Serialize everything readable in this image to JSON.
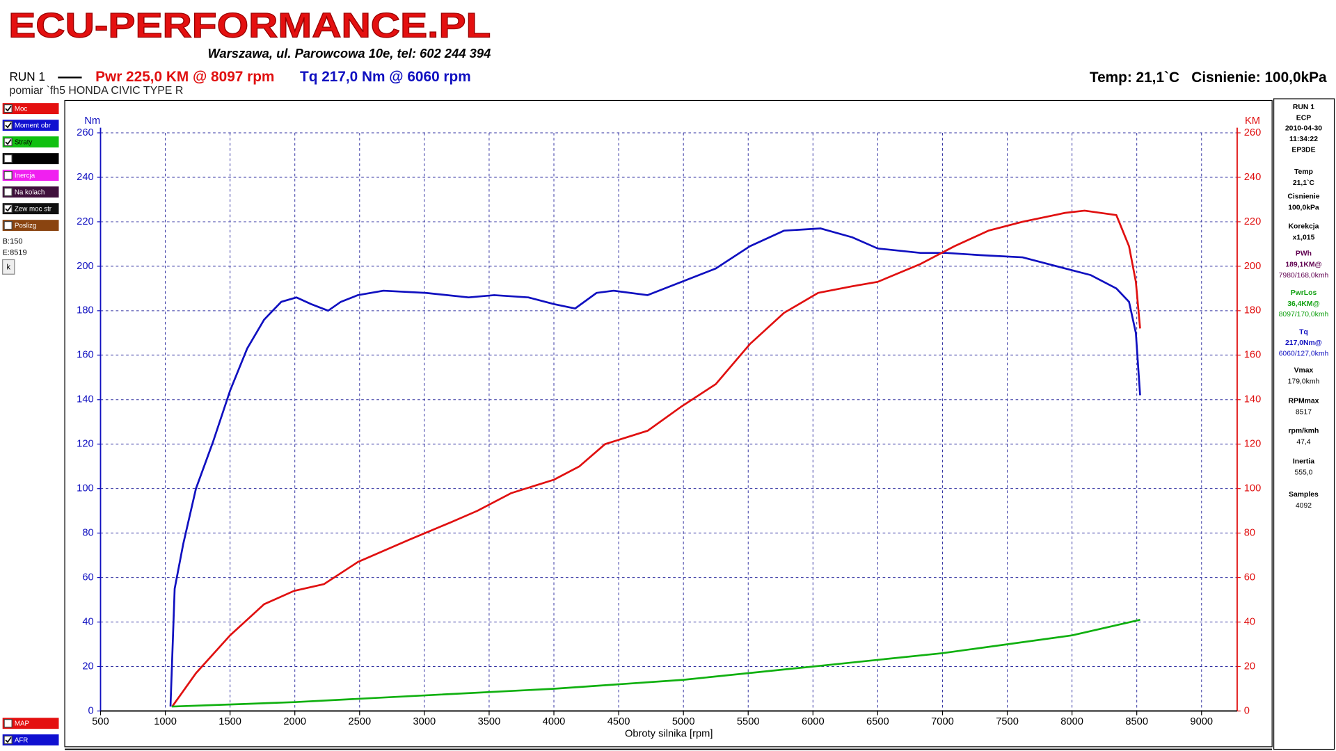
{
  "header": {
    "title": "ECU-PERFORMANCE.PL",
    "address": "Warszawa, ul. Parowcowa 10e, tel: 602 244 394",
    "run": "RUN 1",
    "pwr": "Pwr  225,0 KM @ 8097 rpm",
    "tq": "Tq 217,0 Nm @ 6060 rpm",
    "measurement": "pomiar `fh5 HONDA CIVIC TYPE R",
    "conditions": "Temp: 21,1`C   Cisnienie: 100,0kPa"
  },
  "sidebar": {
    "items": [
      {
        "label": "Moc",
        "color": "#e41010",
        "checked": true
      },
      {
        "label": "Moment obr",
        "color": "#1010d0",
        "checked": true
      },
      {
        "label": "Straty",
        "color": "#10c010",
        "checked": true
      },
      {
        "color": "#000000",
        "checked": false
      },
      {
        "label": "Inercja",
        "color": "#f020f0",
        "checked": false
      },
      {
        "label": "Na kolach",
        "color": "#40103c",
        "checked": false
      },
      {
        "label": "Zew moc str",
        "color": "#101010",
        "checked": true
      },
      {
        "label": "Poslizg",
        "color": "#8a4410",
        "checked": false
      }
    ],
    "b": "B:150",
    "e": "E:8519",
    "button": "k",
    "bottom_items": [
      {
        "label": "MAP",
        "color": "#e41010",
        "checked": false
      },
      {
        "label": "AFR",
        "color": "#1010d0",
        "checked": true
      }
    ]
  },
  "info_panel": {
    "header": [
      "RUN 1",
      "ECP",
      "2010-04-30",
      "11:34:22",
      "EP3DE"
    ],
    "fields": [
      {
        "label": "Temp",
        "lines": [
          "21,1`C"
        ]
      },
      {
        "label": "Cisnienie",
        "lines": [
          "100,0kPa"
        ]
      },
      {
        "label": "Korekcja",
        "lines": [
          "x1,015"
        ]
      },
      {
        "label": "PWh",
        "color": "#600050",
        "lines": [
          "189,1KM@",
          "7980/168,0kmh"
        ]
      },
      {
        "label": "PwrLos",
        "color": "#10a010",
        "lines": [
          "36,4KM@",
          "8097/170,0kmh"
        ]
      },
      {
        "label": "Tq",
        "color": "#1010c0",
        "lines": [
          "217,0Nm@",
          "6060/127,0kmh"
        ]
      },
      {
        "label": "Vmax",
        "lines": [
          "179,0kmh"
        ]
      },
      {
        "label": "RPMmax",
        "lines": [
          "8517"
        ]
      },
      {
        "label": "rpm/kmh",
        "lines": [
          "47,4"
        ]
      },
      {
        "label": "Inertia",
        "lines": [
          "555,0"
        ]
      },
      {
        "label": "Samples",
        "lines": [
          "4092"
        ]
      }
    ]
  },
  "chart_data": {
    "type": "line",
    "x_label": "Obroty silnika [rpm]",
    "y_label": "Nm",
    "y2_label": "KM",
    "xlim": [
      500,
      9275
    ],
    "xticks": [
      500,
      1000,
      1500,
      2000,
      2500,
      3000,
      3500,
      4000,
      4500,
      5000,
      5500,
      6000,
      6500,
      7000,
      7500,
      8000,
      8500,
      9000
    ],
    "ylim": [
      0,
      260
    ],
    "yticks": [
      0,
      20,
      40,
      60,
      80,
      100,
      120,
      140,
      160,
      180,
      200,
      220,
      240,
      260
    ],
    "y2lim": [
      0,
      260
    ],
    "y2ticks": [
      0,
      20,
      40,
      60,
      80,
      100,
      120,
      140,
      160,
      180,
      200,
      220,
      240,
      260
    ],
    "grid": true,
    "series": [
      {
        "name": "Moment obr",
        "color": "#1010c0",
        "axis": "y",
        "x": [
          1040,
          1072,
          1138,
          1237,
          1368,
          1500,
          1632,
          1763,
          1895,
          2013,
          2125,
          2257,
          2355,
          2487,
          2684,
          3013,
          3342,
          3539,
          3803,
          4000,
          4164,
          4329,
          4461,
          4724,
          4987,
          5250,
          5513,
          5776,
          6060,
          6303,
          6500,
          6829,
          7026,
          7289,
          7618,
          7947,
          8145,
          8342,
          8440,
          8493,
          8526
        ],
        "values": [
          2,
          55,
          75,
          100,
          121,
          144,
          163,
          176,
          184,
          186,
          183,
          180,
          184,
          187,
          189,
          188,
          186,
          187,
          186,
          183,
          181,
          188,
          189,
          187,
          193,
          199,
          209,
          216,
          217,
          213,
          208,
          206,
          206,
          205,
          204,
          199,
          196,
          190,
          184,
          170,
          142
        ]
      },
      {
        "name": "Moc",
        "color": "#e01010",
        "axis": "y2",
        "x": [
          1053,
          1237,
          1500,
          1763,
          1993,
          2224,
          2487,
          2882,
          3211,
          3408,
          3671,
          4000,
          4197,
          4395,
          4724,
          4987,
          5250,
          5513,
          5776,
          6040,
          6303,
          6500,
          6829,
          7092,
          7355,
          7618,
          7947,
          8097,
          8342,
          8440,
          8493,
          8526
        ],
        "values": [
          2,
          17,
          34,
          48,
          54,
          57,
          67,
          77,
          85,
          90,
          98,
          104,
          110,
          120,
          126,
          137,
          147,
          165,
          179,
          188,
          191,
          193,
          201,
          209,
          216,
          220,
          224,
          225,
          223,
          209,
          193,
          172
        ]
      },
      {
        "name": "Straty",
        "color": "#10b010",
        "axis": "y2",
        "x": [
          1050,
          2000,
          3000,
          4000,
          5000,
          6000,
          7000,
          8000,
          8526
        ],
        "values": [
          2,
          4,
          7,
          10,
          14,
          20,
          26,
          34,
          41
        ]
      }
    ]
  }
}
